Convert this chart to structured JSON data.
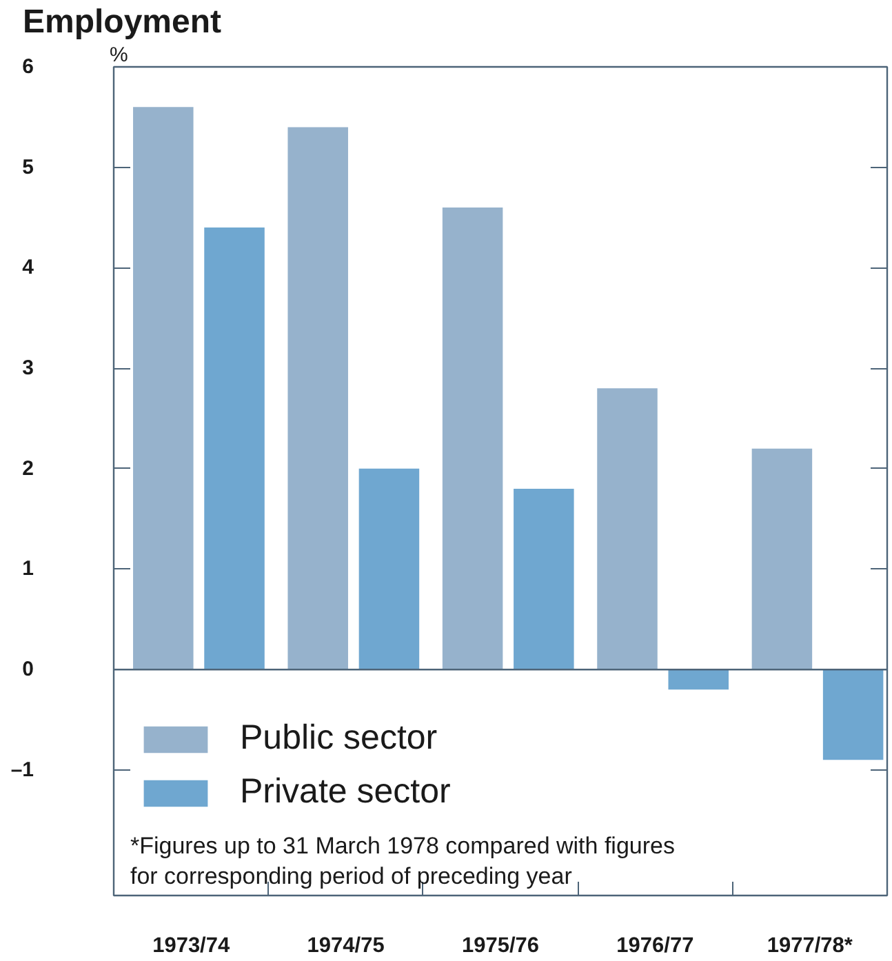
{
  "chart_data": {
    "type": "bar",
    "title": "Employment",
    "ylabel": "%",
    "categories": [
      "1973/74",
      "1974/75",
      "1975/76",
      "1976/77",
      "1977/78*"
    ],
    "series": [
      {
        "name": "Public sector",
        "color": "#96b2cc",
        "values": [
          5.6,
          5.4,
          4.6,
          2.8,
          2.2
        ]
      },
      {
        "name": "Private sector",
        "color": "#6fa7d0",
        "values": [
          4.4,
          2.0,
          1.8,
          -0.2,
          -0.9
        ]
      }
    ],
    "ylim": [
      -2.25,
      6
    ],
    "yticks": [
      {
        "value": -1,
        "label": "–1"
      },
      0,
      1,
      2,
      3,
      4,
      5,
      6
    ],
    "ref_lines": [
      {
        "axis": "y",
        "value": 0
      }
    ],
    "grid": false,
    "legend": "bottom left",
    "annotations": [
      "*Figures up to 31 March 1978 compared with figures\nfor corresponding period of preceding year"
    ]
  }
}
